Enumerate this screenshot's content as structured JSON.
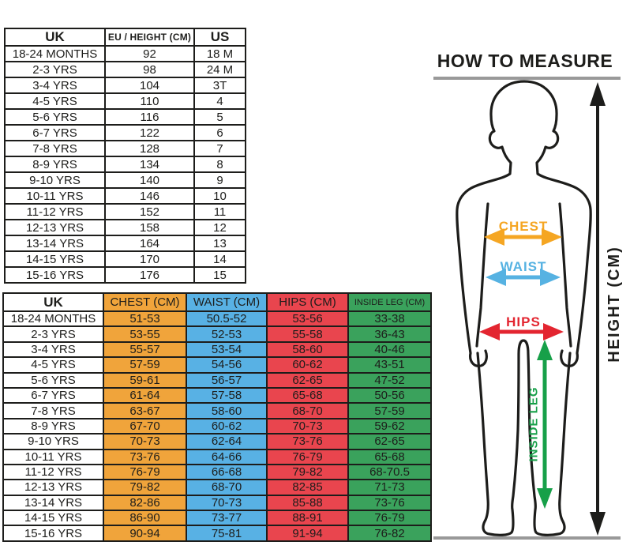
{
  "size_conversion_table": {
    "headers": [
      "UK",
      "EU / HEIGHT (CM)",
      "US"
    ],
    "rows": [
      [
        "18-24 MONTHS",
        "92",
        "18 M"
      ],
      [
        "2-3 YRS",
        "98",
        "24 M"
      ],
      [
        "3-4 YRS",
        "104",
        "3T"
      ],
      [
        "4-5 YRS",
        "110",
        "4"
      ],
      [
        "5-6 YRS",
        "116",
        "5"
      ],
      [
        "6-7 YRS",
        "122",
        "6"
      ],
      [
        "7-8 YRS",
        "128",
        "7"
      ],
      [
        "8-9 YRS",
        "134",
        "8"
      ],
      [
        "9-10 YRS",
        "140",
        "9"
      ],
      [
        "10-11 YRS",
        "146",
        "10"
      ],
      [
        "11-12 YRS",
        "152",
        "11"
      ],
      [
        "12-13 YRS",
        "158",
        "12"
      ],
      [
        "13-14 YRS",
        "164",
        "13"
      ],
      [
        "14-15 YRS",
        "170",
        "14"
      ],
      [
        "15-16 YRS",
        "176",
        "15"
      ]
    ]
  },
  "body_measurements_table": {
    "headers": [
      "UK",
      "CHEST (CM)",
      "WAIST (CM)",
      "HIPS (CM)",
      "INSIDE LEG (CM)"
    ],
    "rows": [
      [
        "18-24 MONTHS",
        "51-53",
        "50.5-52",
        "53-56",
        "33-38"
      ],
      [
        "2-3 YRS",
        "53-55",
        "52-53",
        "55-58",
        "36-43"
      ],
      [
        "3-4 YRS",
        "55-57",
        "53-54",
        "58-60",
        "40-46"
      ],
      [
        "4-5 YRS",
        "57-59",
        "54-56",
        "60-62",
        "43-51"
      ],
      [
        "5-6 YRS",
        "59-61",
        "56-57",
        "62-65",
        "47-52"
      ],
      [
        "6-7 YRS",
        "61-64",
        "57-58",
        "65-68",
        "50-56"
      ],
      [
        "7-8 YRS",
        "63-67",
        "58-60",
        "68-70",
        "57-59"
      ],
      [
        "8-9 YRS",
        "67-70",
        "60-62",
        "70-73",
        "59-62"
      ],
      [
        "9-10 YRS",
        "70-73",
        "62-64",
        "73-76",
        "62-65"
      ],
      [
        "10-11 YRS",
        "73-76",
        "64-66",
        "76-79",
        "65-68"
      ],
      [
        "11-12 YRS",
        "76-79",
        "66-68",
        "79-82",
        "68-70.5"
      ],
      [
        "12-13 YRS",
        "79-82",
        "68-70",
        "82-85",
        "71-73"
      ],
      [
        "13-14 YRS",
        "82-86",
        "70-73",
        "85-88",
        "73-76"
      ],
      [
        "14-15 YRS",
        "86-90",
        "73-77",
        "88-91",
        "76-79"
      ],
      [
        "15-16 YRS",
        "90-94",
        "75-81",
        "91-94",
        "76-82"
      ]
    ]
  },
  "diagram": {
    "title": "HOW TO MEASURE",
    "chest_label": "CHEST",
    "waist_label": "WAIST",
    "hips_label": "HIPS",
    "inside_leg_label": "INSIDE LEG",
    "height_label": "HEIGHT (CM)"
  },
  "colors": {
    "chest": "#F0A43B",
    "waist": "#58B1E4",
    "hips": "#E9454E",
    "inside_leg": "#3AA25C",
    "chest_arrow": "#F5A623",
    "waist_arrow": "#56B2E2",
    "hips_arrow": "#E32530",
    "inside_leg_arrow": "#17A049",
    "text": "#1D1D1B",
    "gray_line": "#999999"
  }
}
